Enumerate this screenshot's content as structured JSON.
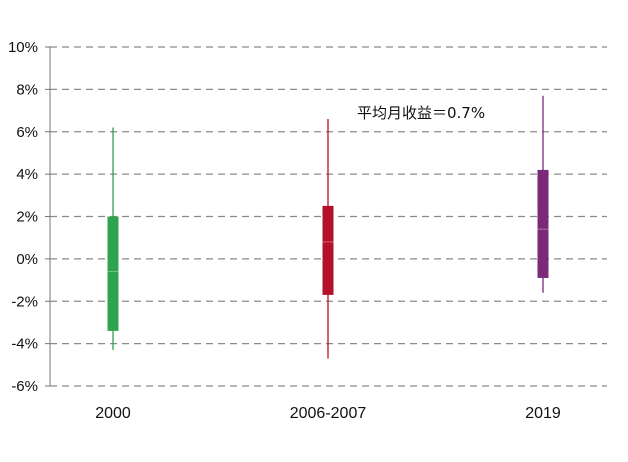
{
  "chart_data": {
    "type": "box",
    "title": "",
    "xlabel": "",
    "ylabel": "",
    "y_unit": "%",
    "ylim": [
      -6,
      10
    ],
    "yticks": [
      -6,
      -4,
      -2,
      0,
      2,
      4,
      6,
      8,
      10
    ],
    "ytick_labels": [
      "-6%",
      "-4%",
      "-2%",
      "0%",
      "2%",
      "4%",
      "6%",
      "8%",
      "10%"
    ],
    "grid": "horizontal-dashed",
    "categories": [
      "2000",
      "2006-2007",
      "2019"
    ],
    "boxes": [
      {
        "category": "2000",
        "min": -4.3,
        "q1": -3.4,
        "median": -0.6,
        "q3": 2.0,
        "max": 6.2,
        "color": "#2ea44f"
      },
      {
        "category": "2006-2007",
        "min": -4.7,
        "q1": -1.7,
        "median": 0.8,
        "q3": 2.5,
        "max": 6.6,
        "color": "#b5102a"
      },
      {
        "category": "2019",
        "min": -1.6,
        "q1": -0.9,
        "median": 1.4,
        "q3": 4.2,
        "max": 7.7,
        "color": "#7b2a78"
      }
    ],
    "annotations": [
      {
        "text": "平均月收益＝0.7%"
      }
    ]
  }
}
